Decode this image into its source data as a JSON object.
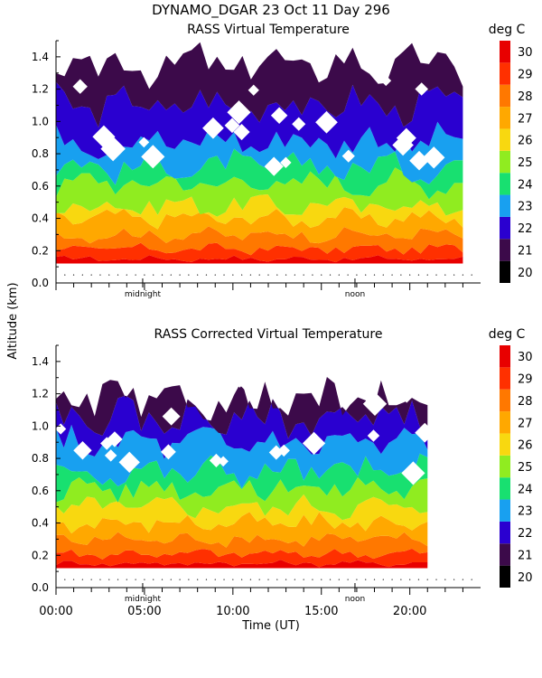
{
  "title": "DYNAMO_DGAR  23 Oct 11 Day 296",
  "shared": {
    "ylabel": "Altitude (km)",
    "xlabel": "Time (UT)",
    "ylim": [
      0,
      1.5
    ],
    "yticks": [
      "0.0",
      "0.2",
      "0.4",
      "0.6",
      "0.8",
      "1.0",
      "1.2",
      "1.4"
    ],
    "xlim": [
      0,
      24
    ],
    "xticks": [
      "00:00",
      "05:00",
      "10:00",
      "15:00",
      "20:00"
    ],
    "markers": [
      {
        "label": "midnight",
        "hour": 4.9
      },
      {
        "label": "noon",
        "hour": 16.9
      }
    ]
  },
  "colorbar": {
    "unit": "deg C",
    "levels": [
      "20",
      "21",
      "22",
      "23",
      "24",
      "25",
      "26",
      "27",
      "28",
      "29",
      "30"
    ],
    "colors": [
      "#000000",
      "#3c0a4a",
      "#2a00d0",
      "#18a0f0",
      "#18e070",
      "#90ec20",
      "#f8d810",
      "#ffa800",
      "#ff7800",
      "#ff3000",
      "#e80000"
    ]
  },
  "chart_data": [
    {
      "type": "heatmap",
      "title": "RASS Virtual Temperature",
      "xlabel": "",
      "ylabel": "Altitude (km)",
      "unit": "deg C",
      "xlim": [
        0,
        24
      ],
      "ylim": [
        0,
        1.5
      ],
      "data_range_hours": [
        0,
        23
      ],
      "data_altitude_min_km": 0.12,
      "temperature_bands": [
        {
          "level": "30",
          "top_km": 0.15
        },
        {
          "level": "29",
          "top_km": 0.21
        },
        {
          "level": "28",
          "top_km": 0.3
        },
        {
          "level": "27",
          "top_km": 0.4
        },
        {
          "level": "26",
          "top_km": 0.48
        },
        {
          "level": "25",
          "top_km": 0.62
        },
        {
          "level": "24",
          "top_km": 0.72
        },
        {
          "level": "23",
          "top_km": 0.88
        },
        {
          "level": "22",
          "top_km": 1.1
        },
        {
          "level": "21",
          "top_km": 1.35
        }
      ]
    },
    {
      "type": "heatmap",
      "title": "RASS Corrected Virtual Temperature",
      "xlabel": "Time (UT)",
      "ylabel": "Altitude (km)",
      "unit": "deg C",
      "xlim": [
        0,
        24
      ],
      "ylim": [
        0,
        1.5
      ],
      "data_range_hours": [
        0,
        21
      ],
      "data_altitude_min_km": 0.12,
      "temperature_bands": [
        {
          "level": "30",
          "top_km": 0.15
        },
        {
          "level": "29",
          "top_km": 0.21
        },
        {
          "level": "28",
          "top_km": 0.3
        },
        {
          "level": "27",
          "top_km": 0.4
        },
        {
          "level": "26",
          "top_km": 0.5
        },
        {
          "level": "25",
          "top_km": 0.62
        },
        {
          "level": "24",
          "top_km": 0.72
        },
        {
          "level": "23",
          "top_km": 0.9
        },
        {
          "level": "22",
          "top_km": 1.05
        },
        {
          "level": "21",
          "top_km": 1.15
        }
      ]
    }
  ]
}
